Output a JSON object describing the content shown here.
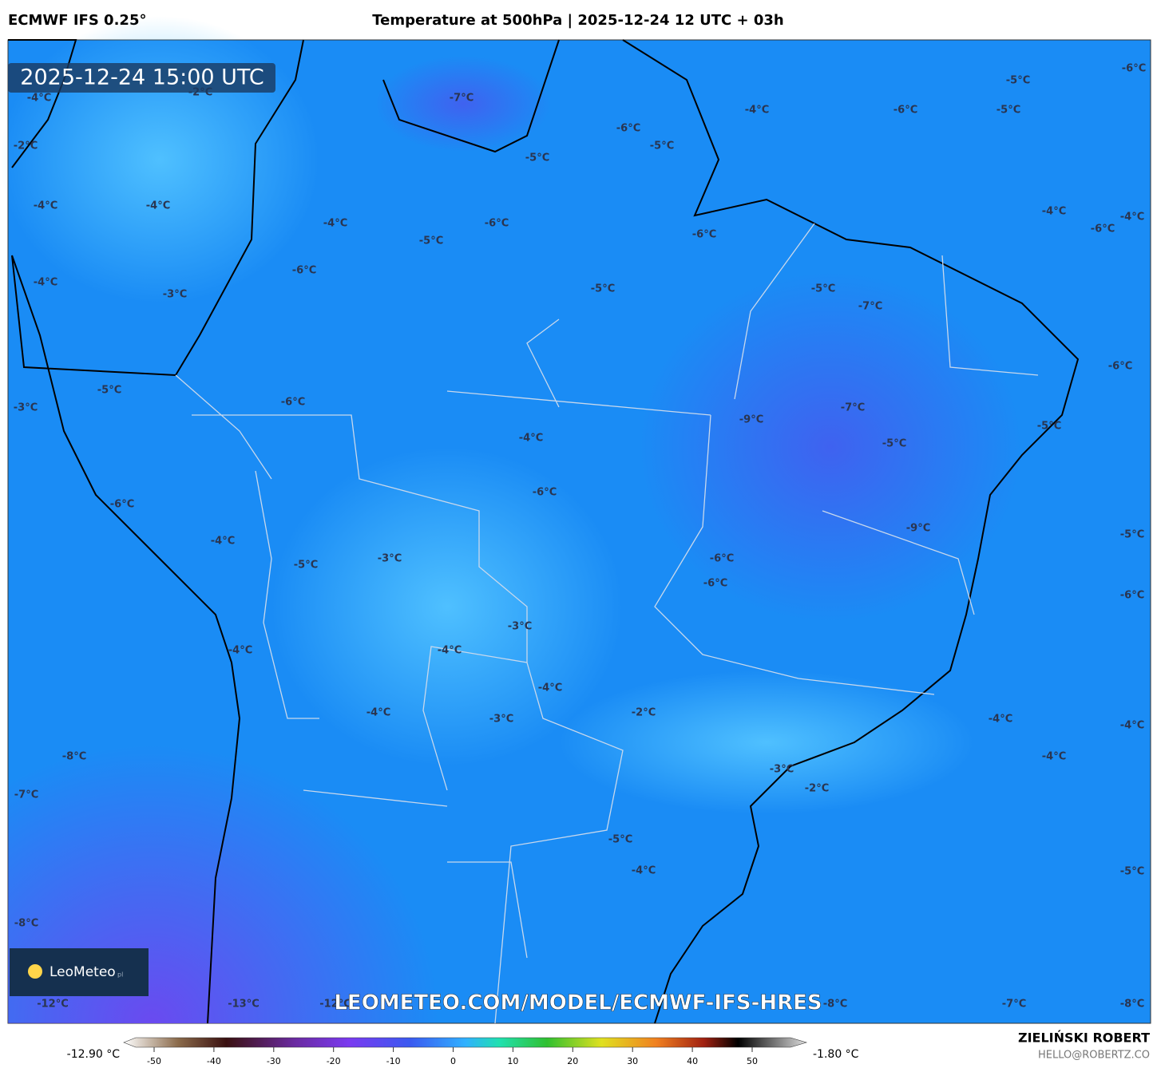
{
  "header": {
    "model": "ECMWF IFS 0.25°",
    "title": "Temperature at 500hPa | 2025-12-24 12 UTC + 03h"
  },
  "map": {
    "timestamp": "2025-12-24 15:00 UTC",
    "watermark": "LEOMETEO.COM/MODEL/ECMWF-IFS-HRES",
    "logo": "LeoMeteo",
    "logo_suffix": "pl",
    "labels": [
      "-4°C",
      "-2°C",
      "-7°C",
      "-4°C",
      "-6°C",
      "-5°C",
      "-5°C",
      "-6°C",
      "-2°C",
      "-6°C",
      "-5°C",
      "-5°C",
      "-4°C",
      "-4°C",
      "-4°C",
      "-6°C",
      "-5°C",
      "-6°C",
      "-4°C",
      "-6°C",
      "-4°C",
      "-4°C",
      "-6°C",
      "-3°C",
      "-5°C",
      "-5°C",
      "-7°C",
      "-5°C",
      "-6°C",
      "-3°C",
      "-6°C",
      "-9°C",
      "-7°C",
      "-5°C",
      "-5°C",
      "-4°C",
      "-6°C",
      "-6°C",
      "-9°C",
      "-5°C",
      "-4°C",
      "-3°C",
      "-5°C",
      "-6°C",
      "-6°C",
      "-6°C",
      "-3°C",
      "-4°C",
      "-4°C",
      "-4°C",
      "-2°C",
      "-4°C",
      "-3°C",
      "-4°C",
      "-4°C",
      "-8°C",
      "-4°C",
      "-3°C",
      "-2°C",
      "-7°C",
      "-5°C",
      "-4°C",
      "-5°C",
      "-8°C",
      "-12°C",
      "-13°C",
      "-12°C",
      "-8°C",
      "-7°C",
      "-8°C"
    ]
  },
  "colorbar": {
    "min_label": "-12.90 °C",
    "max_label": "-1.80 °C",
    "ticks": [
      -50,
      -40,
      -30,
      -20,
      -10,
      0,
      10,
      20,
      30,
      40,
      50
    ]
  },
  "footer": {
    "author": "ZIELIŃSKI ROBERT",
    "email": "HELLO@ROBERTZ.CO"
  }
}
